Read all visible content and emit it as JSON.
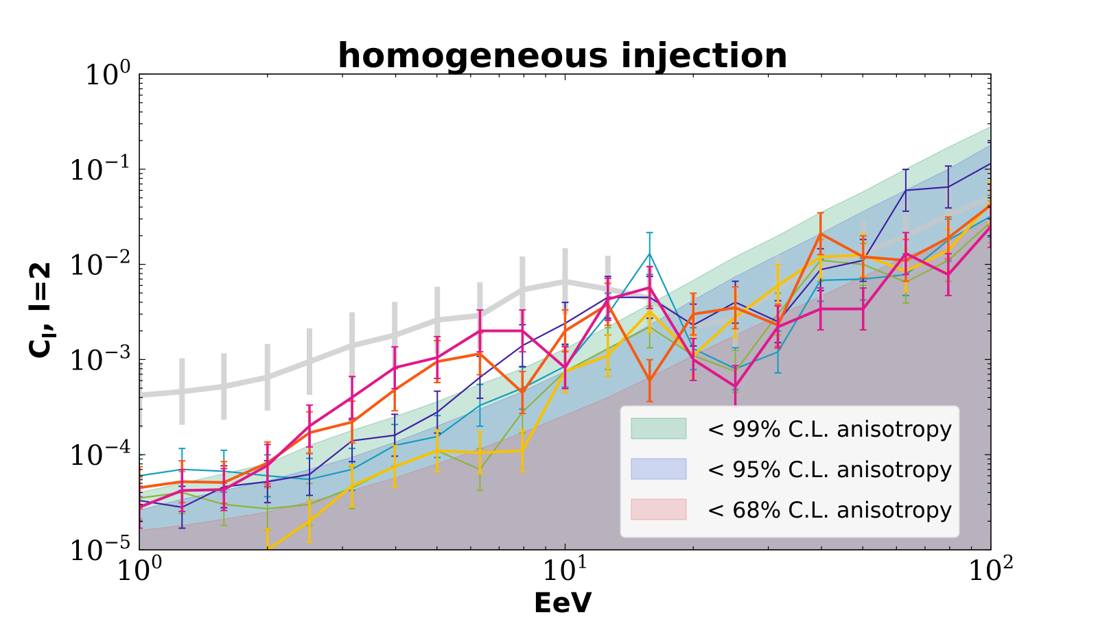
{
  "chart_data": {
    "type": "line",
    "title": "homogeneous injection",
    "xlabel": "EeV",
    "ylabel": "C",
    "ylabel_sub": "l",
    "ylabel_suffix": ", l=2",
    "xscale": "log",
    "yscale": "log",
    "xlim": [
      1,
      100
    ],
    "ylim": [
      1e-05,
      1
    ],
    "x_ticks": [
      {
        "value": 1,
        "base": "10",
        "exp": "0"
      },
      {
        "value": 10,
        "base": "10",
        "exp": "1"
      },
      {
        "value": 100,
        "base": "10",
        "exp": "2"
      }
    ],
    "y_ticks": [
      {
        "value": 1e-05,
        "base": "10",
        "exp": "−5"
      },
      {
        "value": 0.0001,
        "base": "10",
        "exp": "−4"
      },
      {
        "value": 0.001,
        "base": "10",
        "exp": "−3"
      },
      {
        "value": 0.01,
        "base": "10",
        "exp": "−2"
      },
      {
        "value": 0.1,
        "base": "10",
        "exp": "−1"
      },
      {
        "value": 1,
        "base": "10",
        "exp": "0"
      }
    ],
    "x": [
      1.0,
      1.26,
      1.58,
      2.0,
      2.51,
      3.16,
      3.98,
      5.01,
      6.31,
      7.94,
      10.0,
      12.6,
      15.8,
      20.0,
      25.1,
      31.6,
      39.8,
      50.1,
      63.1,
      79.4,
      100.0
    ],
    "bands": [
      {
        "name": "< 99% C.L. anisotropy",
        "color": "#2e9e6a",
        "upper": [
          4e-05,
          5e-05,
          6.3e-05,
          8e-05,
          0.000125,
          0.00018,
          0.00025,
          0.00036,
          0.00055,
          0.0008,
          0.0013,
          0.0022,
          0.0038,
          0.0068,
          0.012,
          0.02,
          0.035,
          0.058,
          0.1,
          0.17,
          0.28
        ]
      },
      {
        "name": "< 95% C.L. anisotropy",
        "color": "#4a74d8",
        "upper": [
          2.6e-05,
          3.4e-05,
          4.2e-05,
          5.3e-05,
          7e-05,
          9.4e-05,
          0.000135,
          0.0002,
          0.0003,
          0.00046,
          0.00075,
          0.0013,
          0.0023,
          0.0042,
          0.0074,
          0.0125,
          0.021,
          0.036,
          0.06,
          0.1,
          0.18
        ]
      },
      {
        "name": "< 68% C.L. anisotropy",
        "color": "#e06670",
        "upper": [
          1.6e-05,
          1.8e-05,
          2.1e-05,
          2.5e-05,
          3.2e-05,
          4.2e-05,
          5.7e-05,
          8e-05,
          0.000115,
          0.00017,
          0.00026,
          0.0004,
          0.00065,
          0.0011,
          0.0018,
          0.0029,
          0.0046,
          0.0075,
          0.012,
          0.018,
          0.03
        ]
      }
    ],
    "series": [
      {
        "name": "grey",
        "color": "#c8c8c8",
        "width": 8,
        "opacity": 0.75,
        "err": 0.35,
        "values": [
          0.00042,
          0.00046,
          0.00052,
          0.00065,
          0.00095,
          0.0014,
          0.0018,
          0.0026,
          0.0029,
          0.0054,
          0.0066,
          0.0055,
          0.0044,
          0.0022,
          0.0027,
          0.0056,
          0.0095,
          0.013,
          0.02,
          0.033,
          0.05
        ]
      },
      {
        "name": "cyan",
        "color": "#159cc0",
        "width": 2.2,
        "opacity": 1,
        "err": 0.22,
        "values": [
          6e-05,
          7e-05,
          6.7e-05,
          6e-05,
          5.5e-05,
          7e-05,
          0.000125,
          0.000155,
          0.00033,
          0.0005,
          0.00085,
          0.003,
          0.013,
          0.0013,
          0.0008,
          0.0012,
          0.0068,
          0.007,
          0.0078,
          0.018,
          0.032
        ]
      },
      {
        "name": "olive",
        "color": "#8cb43a",
        "width": 2.2,
        "opacity": 1,
        "err": 0.22,
        "values": [
          3.5e-05,
          4e-05,
          3e-05,
          2.7e-05,
          3e-05,
          4.5e-05,
          7.5e-05,
          0.00011,
          7e-05,
          0.00028,
          0.00075,
          0.0013,
          0.0022,
          0.0011,
          0.00075,
          0.003,
          0.011,
          0.01,
          0.0065,
          0.011,
          0.028
        ]
      },
      {
        "name": "indigo",
        "color": "#3f22a3",
        "width": 2.2,
        "opacity": 1,
        "err": 0.22,
        "values": [
          3.3e-05,
          2.8e-05,
          4.6e-05,
          5.2e-05,
          6.2e-05,
          0.00014,
          0.00016,
          0.00028,
          0.00065,
          0.0014,
          0.0024,
          0.0045,
          0.0045,
          0.0023,
          0.004,
          0.0025,
          0.0088,
          0.011,
          0.06,
          0.065,
          0.115
        ]
      },
      {
        "name": "yellow",
        "color": "#f7c100",
        "width": 4,
        "opacity": 1,
        "err": 0.22,
        "values": [
          null,
          null,
          null,
          1e-05,
          2e-05,
          4.7e-05,
          7.5e-05,
          0.00011,
          0.000105,
          0.00011,
          0.00075,
          0.0011,
          0.0032,
          0.0011,
          0.0028,
          0.006,
          0.012,
          0.0125,
          0.0085,
          0.014,
          0.045
        ]
      },
      {
        "name": "orange",
        "color": "#f75a14",
        "width": 4,
        "opacity": 1,
        "err": 0.22,
        "values": [
          4.5e-05,
          5.2e-05,
          5.1e-05,
          8.2e-05,
          0.00017,
          0.00022,
          0.00048,
          0.00095,
          0.00115,
          0.00045,
          0.002,
          0.0038,
          0.0006,
          0.003,
          0.0035,
          0.0023,
          0.021,
          0.012,
          0.011,
          0.019,
          0.042
        ]
      },
      {
        "name": "magenta",
        "color": "#e0188a",
        "width": 4,
        "opacity": 1,
        "err": 0.22,
        "values": [
          2.8e-05,
          4.2e-05,
          4.3e-05,
          7.7e-05,
          0.0002,
          0.0004,
          0.00082,
          0.00105,
          0.002,
          0.002,
          0.00082,
          0.0043,
          0.0057,
          0.001,
          0.00052,
          0.0022,
          0.0034,
          0.0034,
          0.013,
          0.0078,
          0.025
        ]
      }
    ],
    "legend": {
      "placement": "lower-right",
      "entries": [
        "< 99% C.L. anisotropy",
        "< 95% C.L. anisotropy",
        "< 68% C.L. anisotropy"
      ]
    }
  }
}
